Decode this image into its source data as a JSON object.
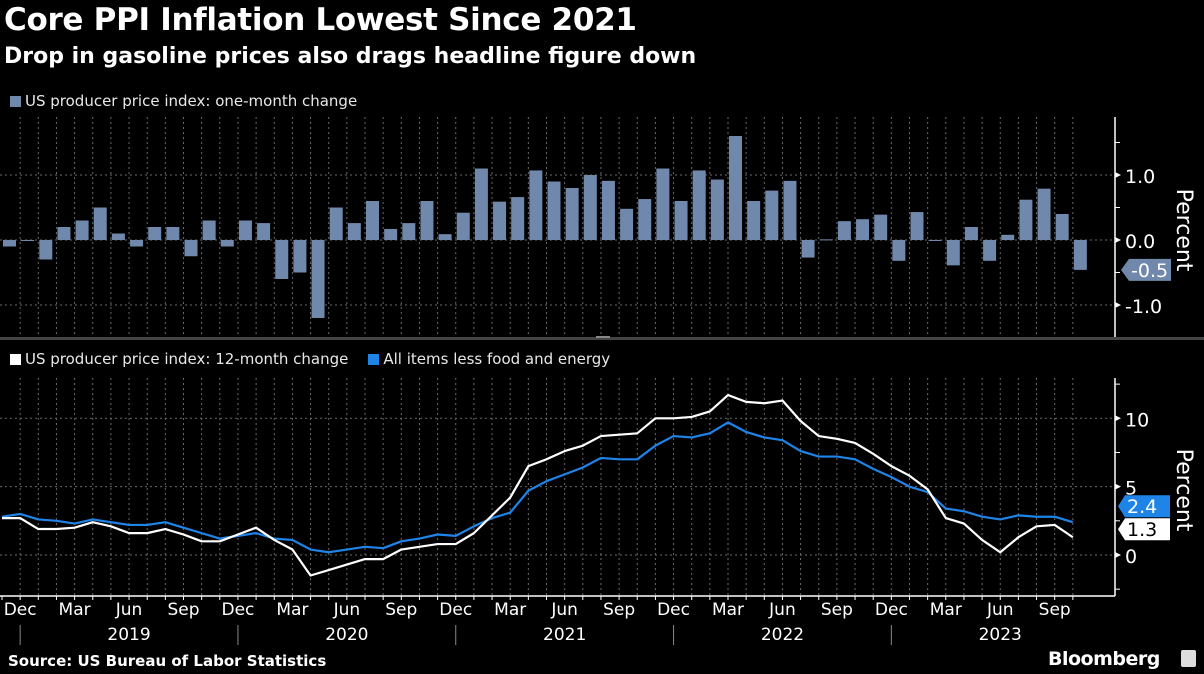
{
  "header": {
    "title": "Core PPI Inflation Lowest Since 2021",
    "subtitle": "Drop in gasoline prices also drags headline figure down"
  },
  "footer": {
    "source": "Source: US Bureau of Labor Statistics",
    "brand": "Bloomberg"
  },
  "colors": {
    "bar": "#7088ab",
    "headline_line": "#ffffff",
    "core_line": "#1f84e8",
    "grid": "#6a6a6a",
    "background": "#000000"
  },
  "chart_data": [
    {
      "type": "bar",
      "legend": "US producer price index: one-month change",
      "ylabel": "Percent",
      "ylim": [
        -1.5,
        1.8
      ],
      "yticks": [
        "1.0",
        "0.0",
        "-1.0"
      ],
      "grid": true,
      "x_start": "2018-11",
      "x_end": "2023-10",
      "last_value_label": "-0.5",
      "values": [
        -0.1,
        0.0,
        -0.3,
        0.2,
        0.3,
        0.5,
        0.1,
        -0.1,
        0.2,
        0.2,
        -0.25,
        0.3,
        -0.1,
        0.3,
        0.26,
        -0.6,
        -0.5,
        -1.2,
        0.5,
        0.26,
        0.6,
        0.17,
        0.26,
        0.6,
        0.09,
        0.42,
        1.1,
        0.59,
        0.66,
        1.07,
        0.9,
        0.8,
        1.0,
        0.91,
        0.48,
        0.63,
        1.1,
        0.6,
        1.07,
        0.93,
        1.6,
        0.6,
        0.76,
        0.91,
        -0.27,
        0.01,
        0.29,
        0.32,
        0.39,
        -0.32,
        0.43,
        -0.01,
        -0.39,
        0.2,
        -0.32,
        0.08,
        0.62,
        0.79,
        0.4,
        -0.46
      ]
    },
    {
      "type": "line",
      "ylabel": "Percent",
      "ylim": [
        -2.9,
        12.9
      ],
      "yticks": [
        "10",
        "5",
        "0"
      ],
      "grid": true,
      "x_start": "2018-11",
      "x_end": "2023-10",
      "xtick_months": [
        "Dec",
        "Mar",
        "Jun",
        "Sep",
        "Dec",
        "Mar",
        "Jun",
        "Sep",
        "Dec",
        "Mar",
        "Jun",
        "Sep",
        "Dec",
        "Mar",
        "Jun",
        "Sep",
        "Dec",
        "Mar",
        "Jun",
        "Sep"
      ],
      "xtick_years": [
        "2019",
        "2020",
        "2021",
        "2022",
        "2023"
      ],
      "series": [
        {
          "name": "US producer price index: 12-month change",
          "last_value_label": "1.3",
          "values": [
            2.7,
            2.7,
            1.9,
            1.9,
            2.0,
            2.4,
            2.1,
            1.6,
            1.6,
            1.9,
            1.5,
            1.0,
            1.0,
            1.5,
            2.0,
            1.1,
            0.4,
            -1.5,
            -1.1,
            -0.7,
            -0.3,
            -0.3,
            0.4,
            0.6,
            0.8,
            0.8,
            1.6,
            2.9,
            4.2,
            6.5,
            7.0,
            7.6,
            8.0,
            8.7,
            8.8,
            8.9,
            10.0,
            10.0,
            10.1,
            10.5,
            11.7,
            11.2,
            11.1,
            11.3,
            9.8,
            8.7,
            8.5,
            8.2,
            7.4,
            6.5,
            5.8,
            4.8,
            2.7,
            2.3,
            1.1,
            0.2,
            1.3,
            2.1,
            2.2,
            1.3
          ]
        },
        {
          "name": "All items less food and energy",
          "last_value_label": "2.4",
          "values": [
            2.8,
            3.0,
            2.6,
            2.5,
            2.3,
            2.6,
            2.4,
            2.2,
            2.2,
            2.4,
            2.0,
            1.6,
            1.2,
            1.4,
            1.6,
            1.2,
            1.1,
            0.4,
            0.2,
            0.4,
            0.6,
            0.5,
            1.0,
            1.2,
            1.5,
            1.4,
            2.1,
            2.7,
            3.1,
            4.7,
            5.4,
            5.9,
            6.4,
            7.1,
            7.0,
            7.0,
            8.0,
            8.7,
            8.6,
            8.9,
            9.7,
            9.0,
            8.6,
            8.4,
            7.6,
            7.2,
            7.2,
            7.0,
            6.3,
            5.7,
            5.0,
            4.6,
            3.4,
            3.2,
            2.8,
            2.6,
            2.9,
            2.8,
            2.8,
            2.4
          ]
        }
      ]
    }
  ]
}
